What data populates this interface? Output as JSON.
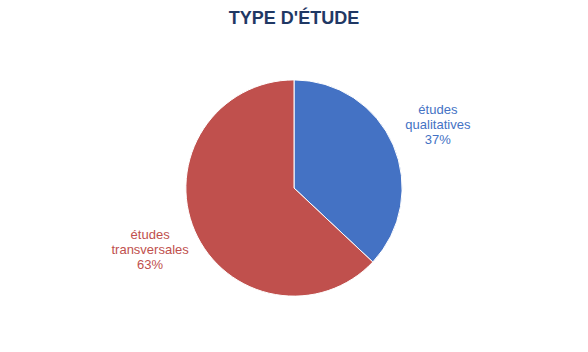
{
  "chart_data": {
    "type": "pie",
    "title": "TYPE D'ÉTUDE",
    "categories": [
      "études\nqualitatives",
      "études\ntransversales"
    ],
    "values": [
      37,
      63
    ],
    "value_labels": [
      "37%",
      "63%"
    ],
    "data_labels": true,
    "colors": [
      "#4472C4",
      "#C0504D"
    ]
  }
}
